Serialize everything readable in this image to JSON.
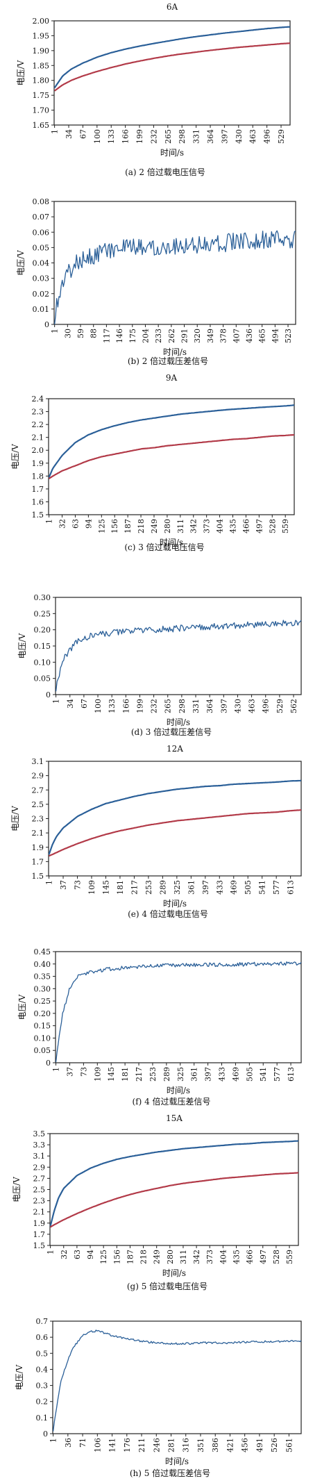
{
  "colors": {
    "blue": "#2a5f98",
    "red": "#b23a48",
    "axis": "#222222",
    "text": "#111111"
  },
  "chart_data": [
    {
      "id": "a",
      "type": "line",
      "title": "6A",
      "caption": "(a) 2 倍过载电压信号",
      "xlabel": "时间/s",
      "ylabel": "电压/V",
      "ylim": [
        1.65,
        2.0
      ],
      "yticks": [
        "1.65",
        "1.70",
        "1.75",
        "1.80",
        "1.85",
        "1.90",
        "1.95",
        "2.00"
      ],
      "xmax": 550,
      "xticks": [
        "1",
        "34",
        "67",
        "100",
        "133",
        "166",
        "199",
        "232",
        "265",
        "298",
        "331",
        "364",
        "397",
        "430",
        "463",
        "496",
        "529"
      ],
      "series": [
        {
          "color": "blue",
          "x": [
            1,
            20,
            40,
            67,
            100,
            133,
            166,
            199,
            232,
            265,
            298,
            331,
            364,
            397,
            430,
            463,
            496,
            529,
            550
          ],
          "values": [
            1.775,
            1.815,
            1.838,
            1.858,
            1.878,
            1.893,
            1.905,
            1.915,
            1.924,
            1.932,
            1.94,
            1.947,
            1.953,
            1.959,
            1.964,
            1.969,
            1.974,
            1.978,
            1.98
          ]
        },
        {
          "color": "red",
          "x": [
            1,
            20,
            40,
            67,
            100,
            133,
            166,
            199,
            232,
            265,
            298,
            331,
            364,
            397,
            430,
            463,
            496,
            529,
            550
          ],
          "values": [
            1.765,
            1.785,
            1.8,
            1.815,
            1.83,
            1.843,
            1.855,
            1.865,
            1.874,
            1.882,
            1.889,
            1.895,
            1.901,
            1.906,
            1.911,
            1.915,
            1.919,
            1.923,
            1.925
          ]
        }
      ]
    },
    {
      "id": "b",
      "type": "line",
      "title": "",
      "caption": "(b) 2 倍过载压差信号",
      "xlabel": "时间/s",
      "ylabel": "电压/V",
      "ylim": [
        0,
        0.08
      ],
      "yticks": [
        "0",
        "0.01",
        "0.02",
        "0.03",
        "0.04",
        "0.05",
        "0.06",
        "0.07",
        "0.08"
      ],
      "xmax": 540,
      "xticks": [
        "1",
        "30",
        "59",
        "88",
        "117",
        "146",
        "175",
        "204",
        "233",
        "262",
        "291",
        "320",
        "349",
        "378",
        "407",
        "436",
        "465",
        "494",
        "523"
      ],
      "series": [
        {
          "color": "blue",
          "x": [
            1,
            10,
            20,
            30,
            45,
            59,
            75,
            88,
            100,
            117,
            146,
            175,
            204,
            233,
            262,
            291,
            320,
            349,
            378,
            407,
            436,
            465,
            494,
            523,
            540
          ],
          "values": [
            0.005,
            0.018,
            0.028,
            0.033,
            0.038,
            0.042,
            0.044,
            0.045,
            0.047,
            0.048,
            0.049,
            0.05,
            0.05,
            0.051,
            0.051,
            0.052,
            0.052,
            0.053,
            0.053,
            0.054,
            0.054,
            0.055,
            0.055,
            0.055,
            0.055
          ],
          "noise": 0.006
        }
      ]
    },
    {
      "id": "c",
      "type": "line",
      "title": "9A",
      "caption": "(c) 3 倍过载电压信号",
      "xlabel": "时间/s",
      "ylabel": "电压/V",
      "ylim": [
        1.5,
        2.4
      ],
      "yticks": [
        "1.5",
        "1.6",
        "1.7",
        "1.8",
        "1.9",
        "2.0",
        "2.1",
        "2.2",
        "2.3",
        "2.4"
      ],
      "xmax": 580,
      "xticks": [
        "1",
        "32",
        "63",
        "94",
        "125",
        "156",
        "187",
        "218",
        "249",
        "280",
        "311",
        "342",
        "373",
        "404",
        "435",
        "466",
        "497",
        "528",
        "559"
      ],
      "series": [
        {
          "color": "blue",
          "x": [
            1,
            10,
            32,
            63,
            94,
            125,
            156,
            187,
            218,
            249,
            280,
            311,
            342,
            373,
            404,
            435,
            466,
            497,
            528,
            559,
            580
          ],
          "values": [
            1.79,
            1.86,
            1.96,
            2.06,
            2.12,
            2.16,
            2.19,
            2.215,
            2.235,
            2.25,
            2.265,
            2.28,
            2.29,
            2.3,
            2.31,
            2.318,
            2.325,
            2.332,
            2.338,
            2.344,
            2.35
          ]
        },
        {
          "color": "red",
          "x": [
            1,
            10,
            32,
            63,
            94,
            125,
            156,
            187,
            218,
            249,
            280,
            311,
            342,
            373,
            404,
            435,
            466,
            497,
            528,
            559,
            580
          ],
          "values": [
            1.78,
            1.8,
            1.84,
            1.88,
            1.92,
            1.95,
            1.97,
            1.99,
            2.01,
            2.02,
            2.035,
            2.045,
            2.055,
            2.065,
            2.075,
            2.085,
            2.09,
            2.1,
            2.11,
            2.115,
            2.12
          ]
        }
      ]
    },
    {
      "id": "d",
      "type": "line",
      "title": "",
      "caption": "(d) 3 倍过载压差信号",
      "xlabel": "时间/s",
      "ylabel": "电压/V",
      "ylim": [
        0,
        0.3
      ],
      "yticks": [
        "0",
        "0.05",
        "0.10",
        "0.15",
        "0.20",
        "0.25",
        "0.30"
      ],
      "xmax": 580,
      "xticks": [
        "1",
        "34",
        "67",
        "100",
        "133",
        "166",
        "199",
        "232",
        "265",
        "298",
        "331",
        "364",
        "397",
        "430",
        "463",
        "496",
        "529",
        "562"
      ],
      "series": [
        {
          "color": "blue",
          "x": [
            1,
            10,
            20,
            34,
            50,
            67,
            100,
            133,
            166,
            199,
            232,
            265,
            298,
            331,
            364,
            397,
            430,
            463,
            496,
            529,
            562,
            580
          ],
          "values": [
            0.02,
            0.07,
            0.11,
            0.14,
            0.16,
            0.175,
            0.185,
            0.19,
            0.195,
            0.198,
            0.2,
            0.202,
            0.205,
            0.207,
            0.209,
            0.211,
            0.213,
            0.215,
            0.217,
            0.219,
            0.221,
            0.222
          ],
          "noise": 0.01
        }
      ]
    },
    {
      "id": "e",
      "type": "line",
      "title": "12A",
      "caption": "(e) 4 倍过载电压信号",
      "xlabel": "时间/s",
      "ylabel": "电压/V",
      "ylim": [
        1.5,
        3.1
      ],
      "yticks": [
        "1.5",
        "1.7",
        "1.9",
        "2.1",
        "2.3",
        "2.5",
        "2.7",
        "2.9",
        "3.1"
      ],
      "xmax": 640,
      "xticks": [
        "1",
        "37",
        "73",
        "109",
        "145",
        "181",
        "217",
        "253",
        "289",
        "325",
        "361",
        "397",
        "433",
        "469",
        "505",
        "541",
        "577",
        "613"
      ],
      "series": [
        {
          "color": "blue",
          "x": [
            1,
            10,
            20,
            37,
            55,
            73,
            109,
            145,
            181,
            217,
            253,
            289,
            325,
            361,
            397,
            433,
            469,
            505,
            541,
            577,
            613,
            640
          ],
          "values": [
            1.8,
            1.94,
            2.05,
            2.17,
            2.25,
            2.33,
            2.43,
            2.51,
            2.56,
            2.61,
            2.65,
            2.68,
            2.71,
            2.73,
            2.75,
            2.76,
            2.78,
            2.79,
            2.8,
            2.81,
            2.825,
            2.83
          ]
        },
        {
          "color": "red",
          "x": [
            1,
            10,
            37,
            73,
            109,
            145,
            181,
            217,
            253,
            289,
            325,
            361,
            397,
            433,
            469,
            505,
            541,
            577,
            613,
            640
          ],
          "values": [
            1.78,
            1.8,
            1.87,
            1.95,
            2.02,
            2.08,
            2.13,
            2.17,
            2.21,
            2.24,
            2.27,
            2.29,
            2.31,
            2.33,
            2.35,
            2.37,
            2.38,
            2.39,
            2.41,
            2.42
          ]
        }
      ]
    },
    {
      "id": "f",
      "type": "line",
      "title": "",
      "caption": "(f) 4 倍过载压差信号",
      "xlabel": "时间/s",
      "ylabel": "电压/V",
      "ylim": [
        0,
        0.45
      ],
      "yticks": [
        "0",
        "0.05",
        "0.10",
        "0.15",
        "0.20",
        "0.25",
        "0.30",
        "0.35",
        "0.40",
        "0.45"
      ],
      "xmax": 640,
      "xticks": [
        "1",
        "37",
        "73",
        "109",
        "145",
        "181",
        "217",
        "253",
        "289",
        "325",
        "361",
        "397",
        "433",
        "469",
        "505",
        "541",
        "577",
        "613"
      ],
      "series": [
        {
          "color": "blue",
          "x": [
            1,
            10,
            20,
            37,
            55,
            73,
            100,
            145,
            181,
            217,
            253,
            289,
            325,
            361,
            397,
            433,
            469,
            505,
            541,
            577,
            613,
            640
          ],
          "values": [
            0.01,
            0.12,
            0.21,
            0.3,
            0.345,
            0.36,
            0.37,
            0.38,
            0.385,
            0.39,
            0.392,
            0.394,
            0.395,
            0.396,
            0.397,
            0.398,
            0.398,
            0.399,
            0.4,
            0.401,
            0.402,
            0.403
          ],
          "noise": 0.008
        }
      ]
    },
    {
      "id": "g",
      "type": "line",
      "title": "15A",
      "caption": "(g) 5 倍过载电压信号",
      "xlabel": "时间/s",
      "ylabel": "电压/V",
      "ylim": [
        1.5,
        3.5
      ],
      "yticks": [
        "1.5",
        "1.7",
        "1.9",
        "2.1",
        "2.3",
        "2.5",
        "2.7",
        "2.9",
        "3.1",
        "3.3",
        "3.5"
      ],
      "xmax": 580,
      "xticks": [
        "1",
        "32",
        "63",
        "94",
        "125",
        "156",
        "187",
        "218",
        "249",
        "280",
        "311",
        "342",
        "373",
        "404",
        "435",
        "466",
        "497",
        "528",
        "559"
      ],
      "series": [
        {
          "color": "blue",
          "x": [
            1,
            10,
            20,
            32,
            63,
            94,
            125,
            156,
            187,
            218,
            249,
            280,
            311,
            342,
            373,
            404,
            435,
            466,
            497,
            528,
            559,
            580
          ],
          "values": [
            1.85,
            2.12,
            2.35,
            2.52,
            2.75,
            2.88,
            2.97,
            3.04,
            3.09,
            3.13,
            3.17,
            3.2,
            3.23,
            3.25,
            3.27,
            3.29,
            3.31,
            3.32,
            3.34,
            3.35,
            3.36,
            3.37
          ]
        },
        {
          "color": "red",
          "x": [
            1,
            10,
            32,
            63,
            94,
            125,
            156,
            187,
            218,
            249,
            280,
            311,
            342,
            373,
            404,
            435,
            466,
            497,
            528,
            559,
            580
          ],
          "values": [
            1.83,
            1.87,
            1.96,
            2.07,
            2.17,
            2.26,
            2.34,
            2.41,
            2.47,
            2.52,
            2.57,
            2.61,
            2.64,
            2.67,
            2.7,
            2.72,
            2.74,
            2.76,
            2.78,
            2.79,
            2.8
          ]
        }
      ]
    },
    {
      "id": "h",
      "type": "line",
      "title": "",
      "caption": "(h) 5 倍过载压差信号",
      "xlabel": "时间/s",
      "ylabel": "电压/V",
      "ylim": [
        0,
        0.7
      ],
      "yticks": [
        "0",
        "0.1",
        "0.2",
        "0.3",
        "0.4",
        "0.5",
        "0.6",
        "0.7"
      ],
      "xmax": 590,
      "xticks": [
        "1",
        "36",
        "71",
        "106",
        "141",
        "176",
        "211",
        "246",
        "281",
        "316",
        "351",
        "386",
        "421",
        "456",
        "491",
        "526",
        "561"
      ],
      "series": [
        {
          "color": "blue",
          "x": [
            1,
            10,
            20,
            36,
            50,
            71,
            90,
            106,
            125,
            141,
            176,
            211,
            246,
            281,
            316,
            351,
            386,
            421,
            456,
            491,
            526,
            561,
            590
          ],
          "values": [
            0.02,
            0.18,
            0.33,
            0.46,
            0.54,
            0.61,
            0.635,
            0.64,
            0.625,
            0.61,
            0.59,
            0.575,
            0.565,
            0.56,
            0.56,
            0.565,
            0.565,
            0.565,
            0.57,
            0.572,
            0.574,
            0.576,
            0.578
          ],
          "noise": 0.006
        }
      ]
    }
  ]
}
